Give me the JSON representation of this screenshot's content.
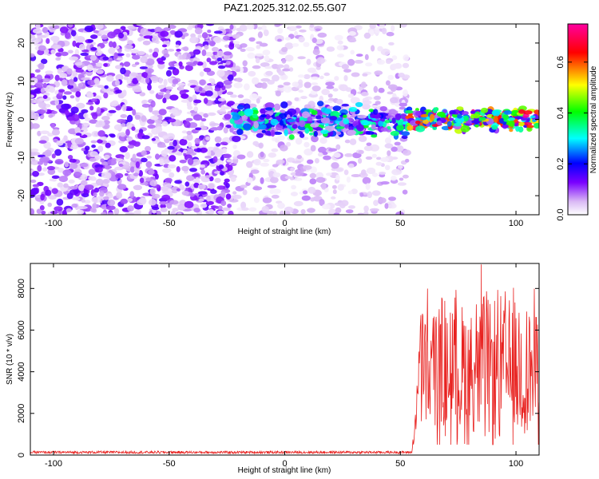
{
  "title": "PAZ1.2025.312.02.55.G07",
  "chart_data": [
    {
      "type": "heatmap",
      "xlabel": "Height of straight line (km)",
      "ylabel": "Frequency (Hz)",
      "xlim": [
        -110,
        110
      ],
      "ylim": [
        -25,
        25
      ],
      "xticks": [
        -100,
        -50,
        0,
        50,
        100
      ],
      "yticks": [
        -20,
        -10,
        0,
        10,
        20
      ],
      "colorbar": {
        "label": "Normalized spectral amplitude",
        "range": [
          0.0,
          0.75
        ],
        "ticks": [
          "0.0",
          "0.2",
          "0.4",
          "0.6"
        ],
        "colors": [
          "#ffffff",
          "#d9b8f5",
          "#7a00ff",
          "#0000ff",
          "#00ffff",
          "#00ff00",
          "#ffff00",
          "#ff0000",
          "#ff00a0"
        ]
      },
      "regions": [
        {
          "x_range": [
            -110,
            -22
          ],
          "freq_range": [
            -25,
            25
          ],
          "description": "broad noise",
          "amplitude": 0.08
        },
        {
          "x_range": [
            -22,
            53
          ],
          "freq_range": [
            -25,
            25
          ],
          "description": "sparse noise",
          "amplitude": 0.04
        },
        {
          "x_range": [
            -22,
            53
          ],
          "freq_range": [
            -6,
            5
          ],
          "description": "signal band",
          "amplitude": 0.2
        },
        {
          "x_range": [
            53,
            110
          ],
          "freq_range": [
            -4,
            4
          ],
          "description": "strong signal band",
          "amplitude": 0.55
        }
      ]
    },
    {
      "type": "line",
      "xlabel": "Height of straight line (km)",
      "ylabel": "SNR (10 * v/v)",
      "xlim": [
        -110,
        110
      ],
      "ylim": [
        0,
        9200
      ],
      "xticks": [
        -100,
        -50,
        0,
        50,
        100
      ],
      "yticks": [
        0,
        2000,
        4000,
        6000,
        8000
      ],
      "series": [
        {
          "name": "SNR",
          "color": "#e8201e",
          "segments": [
            {
              "x_range": [
                -110,
                55
              ],
              "baseline": 120,
              "amplitude": 120
            },
            {
              "x_range": [
                55,
                58
              ],
              "baseline": 1500,
              "amplitude": 3000
            },
            {
              "x_range": [
                58,
                110
              ],
              "baseline": 4000,
              "amplitude": 4500
            }
          ],
          "peak": {
            "x": 85,
            "y": 9150
          }
        }
      ]
    }
  ]
}
